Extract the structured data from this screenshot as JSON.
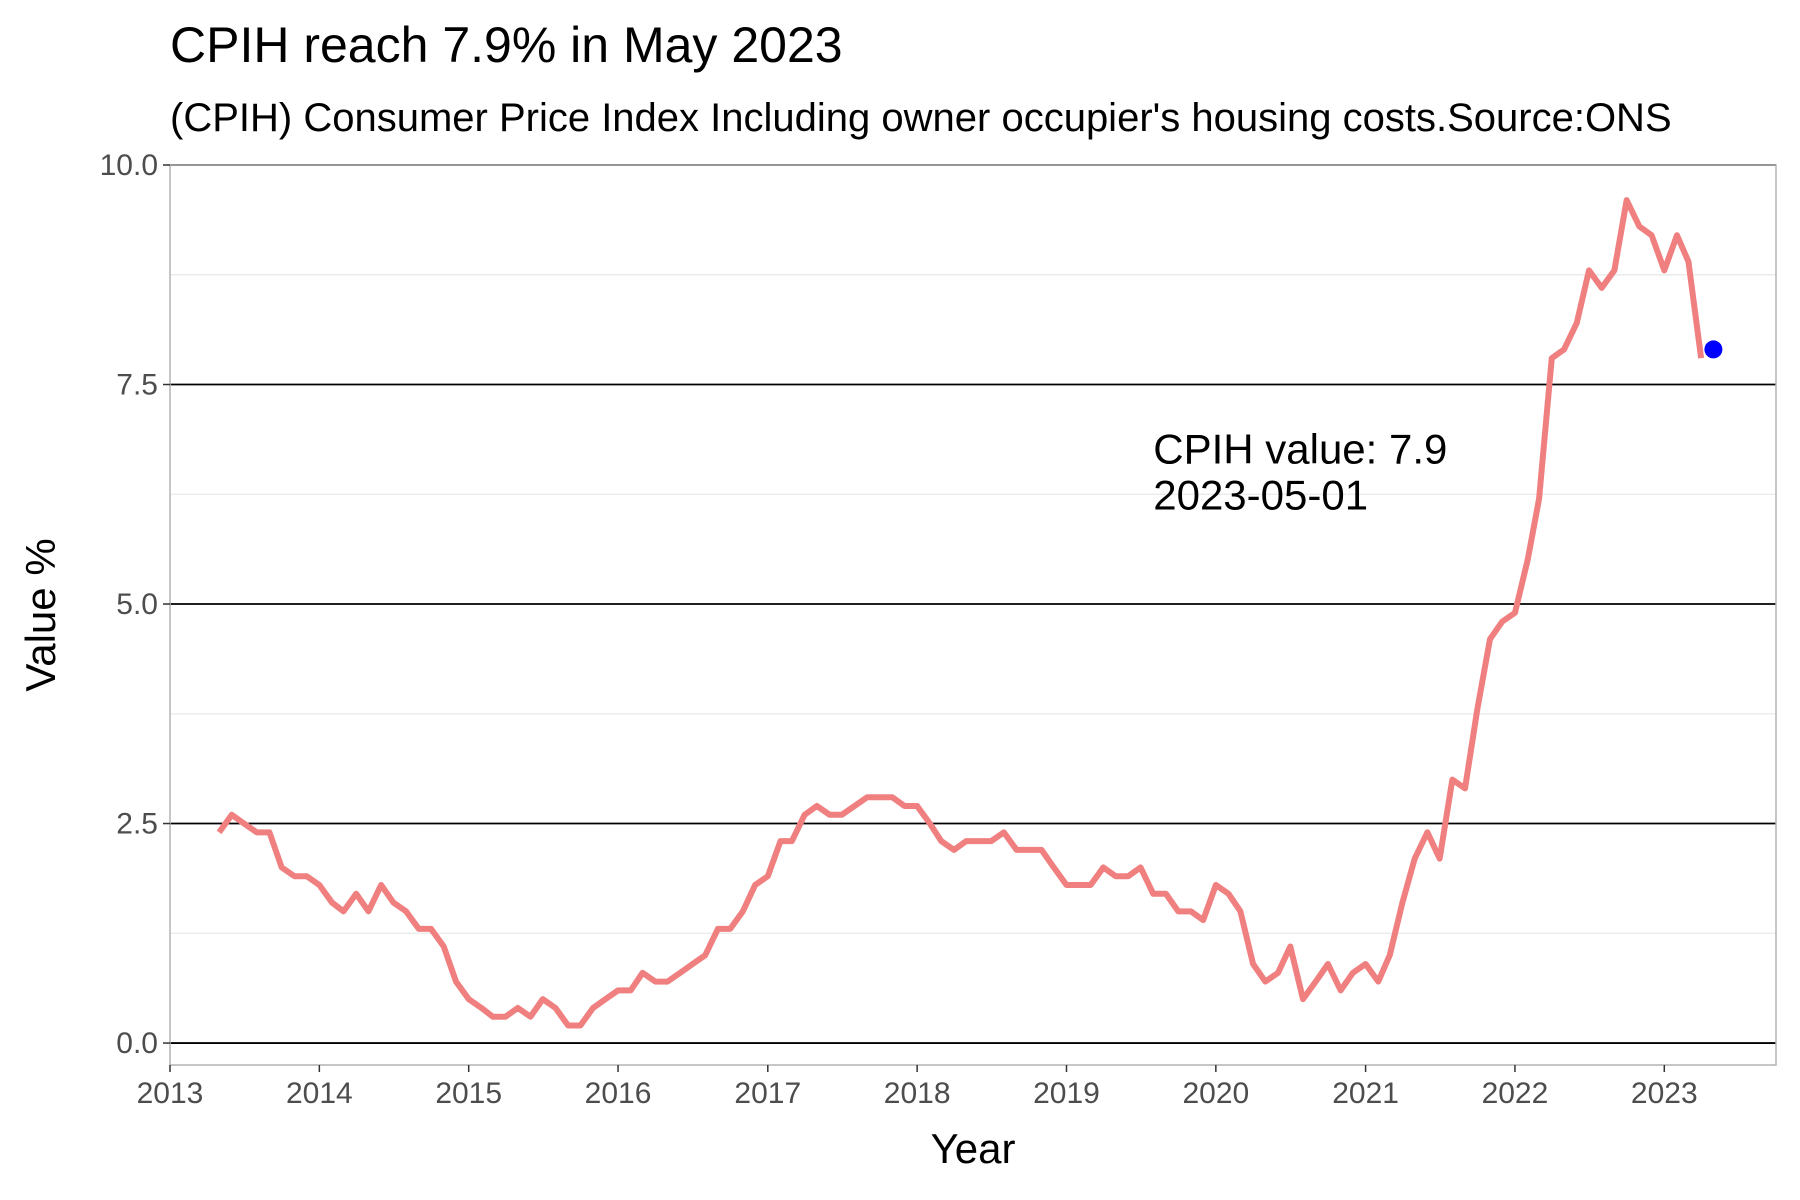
{
  "chart_data": {
    "type": "line",
    "title": "CPIH reach 7.9% in May 2023",
    "subtitle": "(CPIH) Consumer Price Index Including owner occupier's housing costs.Source:ONS",
    "xlabel": "Year",
    "ylabel": "Value %",
    "x_ticks": [
      "2013",
      "2014",
      "2015",
      "2016",
      "2017",
      "2018",
      "2019",
      "2020",
      "2021",
      "2022",
      "2023"
    ],
    "y_ticks": [
      "0.0",
      "2.5",
      "5.0",
      "7.5",
      "10.0"
    ],
    "xlim": [
      "2013-01-01",
      "2023-10-01"
    ],
    "ylim": [
      -0.25,
      10.0
    ],
    "grid": true,
    "series": [
      {
        "color": "#f08080",
        "x": [
          "2013-05-01",
          "2013-06-01",
          "2013-07-01",
          "2013-08-01",
          "2013-09-01",
          "2013-10-01",
          "2013-11-01",
          "2013-12-01",
          "2014-01-01",
          "2014-02-01",
          "2014-03-01",
          "2014-04-01",
          "2014-05-01",
          "2014-06-01",
          "2014-07-01",
          "2014-08-01",
          "2014-09-01",
          "2014-10-01",
          "2014-11-01",
          "2014-12-01",
          "2015-01-01",
          "2015-02-01",
          "2015-03-01",
          "2015-04-01",
          "2015-05-01",
          "2015-06-01",
          "2015-07-01",
          "2015-08-01",
          "2015-09-01",
          "2015-10-01",
          "2015-11-01",
          "2015-12-01",
          "2016-01-01",
          "2016-02-01",
          "2016-03-01",
          "2016-04-01",
          "2016-05-01",
          "2016-06-01",
          "2016-07-01",
          "2016-08-01",
          "2016-09-01",
          "2016-10-01",
          "2016-11-01",
          "2016-12-01",
          "2017-01-01",
          "2017-02-01",
          "2017-03-01",
          "2017-04-01",
          "2017-05-01",
          "2017-06-01",
          "2017-07-01",
          "2017-08-01",
          "2017-09-01",
          "2017-10-01",
          "2017-11-01",
          "2017-12-01",
          "2018-01-01",
          "2018-02-01",
          "2018-03-01",
          "2018-04-01",
          "2018-05-01",
          "2018-06-01",
          "2018-07-01",
          "2018-08-01",
          "2018-09-01",
          "2018-10-01",
          "2018-11-01",
          "2018-12-01",
          "2019-01-01",
          "2019-02-01",
          "2019-03-01",
          "2019-04-01",
          "2019-05-01",
          "2019-06-01",
          "2019-07-01",
          "2019-08-01",
          "2019-09-01",
          "2019-10-01",
          "2019-11-01",
          "2019-12-01",
          "2020-01-01",
          "2020-02-01",
          "2020-03-01",
          "2020-04-01",
          "2020-05-01",
          "2020-06-01",
          "2020-07-01",
          "2020-08-01",
          "2020-09-01",
          "2020-10-01",
          "2020-11-01",
          "2020-12-01",
          "2021-01-01",
          "2021-02-01",
          "2021-03-01",
          "2021-04-01",
          "2021-05-01",
          "2021-06-01",
          "2021-07-01",
          "2021-08-01",
          "2021-09-01",
          "2021-10-01",
          "2021-11-01",
          "2021-12-01",
          "2022-01-01",
          "2022-02-01",
          "2022-03-01",
          "2022-04-01",
          "2022-05-01",
          "2022-06-01",
          "2022-07-01",
          "2022-08-01",
          "2022-09-01",
          "2022-10-01",
          "2022-11-01",
          "2022-12-01",
          "2023-01-01",
          "2023-02-01",
          "2023-03-01",
          "2023-04-01"
        ],
        "y": [
          2.4,
          2.6,
          2.5,
          2.4,
          2.4,
          2.0,
          1.9,
          1.9,
          1.8,
          1.6,
          1.5,
          1.7,
          1.5,
          1.8,
          1.6,
          1.5,
          1.3,
          1.3,
          1.1,
          0.7,
          0.5,
          0.4,
          0.3,
          0.3,
          0.4,
          0.3,
          0.5,
          0.4,
          0.2,
          0.2,
          0.4,
          0.5,
          0.6,
          0.6,
          0.8,
          0.7,
          0.7,
          0.8,
          0.9,
          1.0,
          1.3,
          1.3,
          1.5,
          1.8,
          1.9,
          2.3,
          2.3,
          2.6,
          2.7,
          2.6,
          2.6,
          2.7,
          2.8,
          2.8,
          2.8,
          2.7,
          2.7,
          2.5,
          2.3,
          2.2,
          2.3,
          2.3,
          2.3,
          2.4,
          2.2,
          2.2,
          2.2,
          2.0,
          1.8,
          1.8,
          1.8,
          2.0,
          1.9,
          1.9,
          2.0,
          1.7,
          1.7,
          1.5,
          1.5,
          1.4,
          1.8,
          1.7,
          1.5,
          0.9,
          0.7,
          0.8,
          1.1,
          0.5,
          0.7,
          0.9,
          0.6,
          0.8,
          0.9,
          0.7,
          1.0,
          1.6,
          2.1,
          2.4,
          2.1,
          3.0,
          2.9,
          3.8,
          4.6,
          4.8,
          4.9,
          5.5,
          6.2,
          7.8,
          7.9,
          8.2,
          8.8,
          8.6,
          8.8,
          9.6,
          9.3,
          9.2,
          8.8,
          9.2,
          8.9,
          7.8
        ]
      }
    ],
    "highlight_point": {
      "x": "2023-05-01",
      "y": 7.9,
      "color": "#0000ff"
    },
    "annotation": {
      "line1": "CPIH value: 7.9",
      "line2": "2023-05-01",
      "x": "2019-08-01",
      "y": 6.6
    }
  }
}
